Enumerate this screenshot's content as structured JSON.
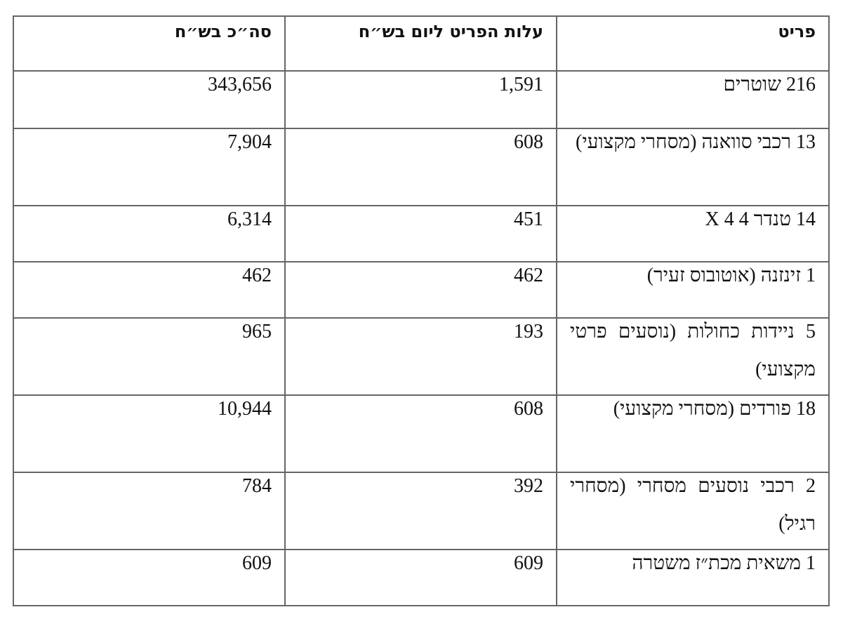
{
  "table": {
    "header": [
      "פריט",
      "עלות הפריט ליום בש״ח",
      "סה״כ בש״ח"
    ],
    "rows": [
      [
        "216 שוטרים",
        "1,591",
        "343,656"
      ],
      [
        "13 רכבי סוואנה (מסחרי מקצועי)",
        "608",
        "7,904"
      ],
      [
        "14 טנדר 4 X 4",
        "451",
        "6,314"
      ],
      [
        "1 זינזנה (אוטובוס זעיר)",
        "462",
        "462"
      ],
      [
        "5 ניידות כחולות (נוסעים פרטי מקצועי)",
        "193",
        "965"
      ],
      [
        "18 פורדים (מסחרי מקצועי)",
        "608",
        "10,944"
      ],
      [
        "2 רכבי נוסעים מסחרי (מסחרי רגיל)",
        "392",
        "784"
      ],
      [
        "1 משאית מכת״ז משטרה",
        "609",
        "609"
      ]
    ]
  }
}
